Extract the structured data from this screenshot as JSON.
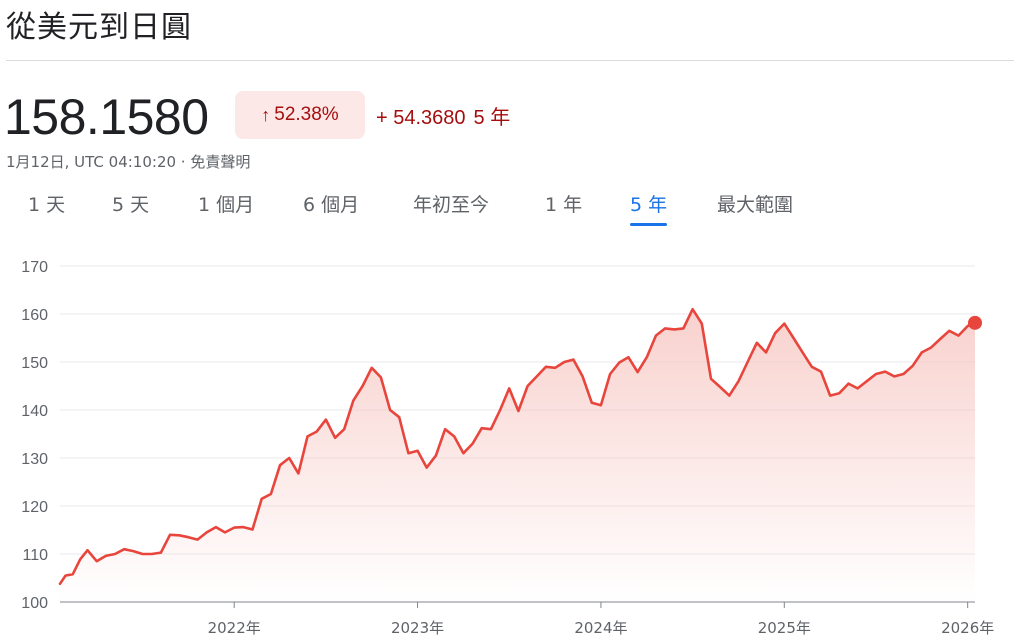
{
  "header": {
    "title": "從美元到日圓"
  },
  "quote": {
    "price": "158.1580",
    "percent_change": "52.38%",
    "absolute_change": "+ 54.3680",
    "period": "5 年",
    "trend": "up",
    "timestamp": "1月12日, UTC 04:10:20 · ",
    "disclaimer": "免責聲明"
  },
  "range_tabs": [
    {
      "label": "1 天"
    },
    {
      "label": "5 天"
    },
    {
      "label": "1 個月"
    },
    {
      "label": "6 個月"
    },
    {
      "label": "年初至今"
    },
    {
      "label": "1 年"
    },
    {
      "label": "5 年",
      "active": true
    },
    {
      "label": "最大範圍"
    }
  ],
  "colors": {
    "line": "#e8453c",
    "fill": "#f6c2bd",
    "negative_text": "#a50e0e",
    "badge_bg": "#fce8e6",
    "active_tab": "#1a73e8"
  },
  "chart_data": {
    "type": "area",
    "ylim": [
      100,
      170
    ],
    "yticks": [
      100,
      110,
      120,
      130,
      140,
      150,
      160,
      170
    ],
    "xlim": [
      2021.05,
      2026.04
    ],
    "xticks": [
      {
        "value": 2022,
        "label": "2022年"
      },
      {
        "value": 2023,
        "label": "2023年"
      },
      {
        "value": 2024,
        "label": "2024年"
      },
      {
        "value": 2025,
        "label": "2025年"
      },
      {
        "value": 2026,
        "label": "2026年"
      }
    ],
    "grid": true,
    "series": [
      {
        "x": [
          2021.05,
          2021.08,
          2021.12,
          2021.16,
          2021.2,
          2021.25,
          2021.3,
          2021.35,
          2021.4,
          2021.45,
          2021.5,
          2021.55,
          2021.6,
          2021.65,
          2021.7,
          2021.75,
          2021.8,
          2021.85,
          2021.9,
          2021.95,
          2022.0,
          2022.05,
          2022.1,
          2022.15,
          2022.2,
          2022.25,
          2022.3,
          2022.35,
          2022.4,
          2022.45,
          2022.5,
          2022.55,
          2022.6,
          2022.65,
          2022.7,
          2022.75,
          2022.8,
          2022.85,
          2022.9,
          2022.95,
          2023.0,
          2023.05,
          2023.1,
          2023.15,
          2023.2,
          2023.25,
          2023.3,
          2023.35,
          2023.4,
          2023.45,
          2023.5,
          2023.55,
          2023.6,
          2023.65,
          2023.7,
          2023.75,
          2023.8,
          2023.85,
          2023.9,
          2023.95,
          2024.0,
          2024.05,
          2024.1,
          2024.15,
          2024.2,
          2024.25,
          2024.3,
          2024.35,
          2024.4,
          2024.45,
          2024.5,
          2024.55,
          2024.6,
          2024.65,
          2024.7,
          2024.75,
          2024.8,
          2024.85,
          2024.9,
          2024.95,
          2025.0,
          2025.05,
          2025.1,
          2025.15,
          2025.2,
          2025.25,
          2025.3,
          2025.35,
          2025.4,
          2025.45,
          2025.5,
          2025.55,
          2025.6,
          2025.65,
          2025.7,
          2025.75,
          2025.8,
          2025.85,
          2025.9,
          2025.95,
          2026.0,
          2026.04
        ],
        "values": [
          103.8,
          105.5,
          105.8,
          108.9,
          110.8,
          108.5,
          109.6,
          110.0,
          111.0,
          110.6,
          110.0,
          110.0,
          110.3,
          114.0,
          113.9,
          113.5,
          113.0,
          114.5,
          115.6,
          114.5,
          115.5,
          115.6,
          115.1,
          121.5,
          122.5,
          128.5,
          130.0,
          126.8,
          134.5,
          135.5,
          138.0,
          134.2,
          136.0,
          142.0,
          145.0,
          148.8,
          146.8,
          140.0,
          138.5,
          131.0,
          131.5,
          128.0,
          130.5,
          136.0,
          134.5,
          131.0,
          133.0,
          136.2,
          136.0,
          140.0,
          144.5,
          139.8,
          145.0,
          147.0,
          149.0,
          148.8,
          150.0,
          150.5,
          147.0,
          141.5,
          141.0,
          147.5,
          149.9,
          151.0,
          147.9,
          151.0,
          155.5,
          157.0,
          156.8,
          157.0,
          161.0,
          158.0,
          146.5,
          144.8,
          143.0,
          146.0,
          150.0,
          154.0,
          152.0,
          156.0,
          158.0,
          155.0,
          152.0,
          149.0,
          148.0,
          143.0,
          143.5,
          145.5,
          144.5,
          146.0,
          147.5,
          148.0,
          147.0,
          147.5,
          149.2,
          152.0,
          153.0,
          154.8,
          156.5,
          155.5,
          157.5,
          158.158
        ]
      }
    ]
  }
}
